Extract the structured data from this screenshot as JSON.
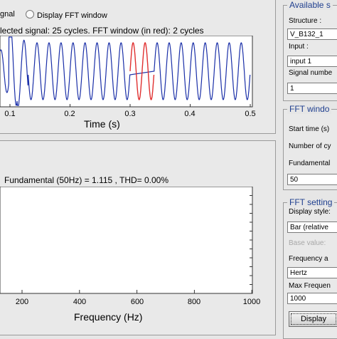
{
  "top_options": {
    "signal_radio_label": "gnal",
    "fft_window_radio_label": "Display FFT window"
  },
  "signal_plot": {
    "title": "lected signal: 25 cycles. FFT window (in red): 2 cycles",
    "x_label": "Time (s)",
    "x_ticks": [
      "0.1",
      "0.2",
      "0.3",
      "0.4",
      "0.5"
    ],
    "colors": {
      "signal": "#1a2fa8",
      "fft_window": "#e03030"
    }
  },
  "spectrum_plot": {
    "title": "Fundamental (50Hz) = 1.115 , THD= 0.00%",
    "x_label": "Frequency (Hz)",
    "x_ticks": [
      "200",
      "400",
      "600",
      "800",
      "1000"
    ]
  },
  "available_signals": {
    "title": "Available s",
    "structure_label": "Structure :",
    "structure_value": "V_B132_1",
    "input_label": "Input :",
    "input_value": "input 1",
    "signal_number_label": "Signal numbe",
    "signal_number_value": "1"
  },
  "fft_window": {
    "title": "FFT windo",
    "start_time_label": "Start time (s)",
    "cycles_label": "Number of cy",
    "fundamental_label": "Fundamental",
    "fundamental_value": "50"
  },
  "fft_settings": {
    "title": "FFT setting",
    "display_style_label": "Display style:",
    "display_style_value": "Bar (relative",
    "base_value_label": "Base value:",
    "frequency_axis_label": "Frequency a",
    "frequency_axis_value": "Hertz",
    "max_frequency_label": "Max Frequen",
    "max_frequency_value": "1000",
    "display_button": "Display"
  }
}
